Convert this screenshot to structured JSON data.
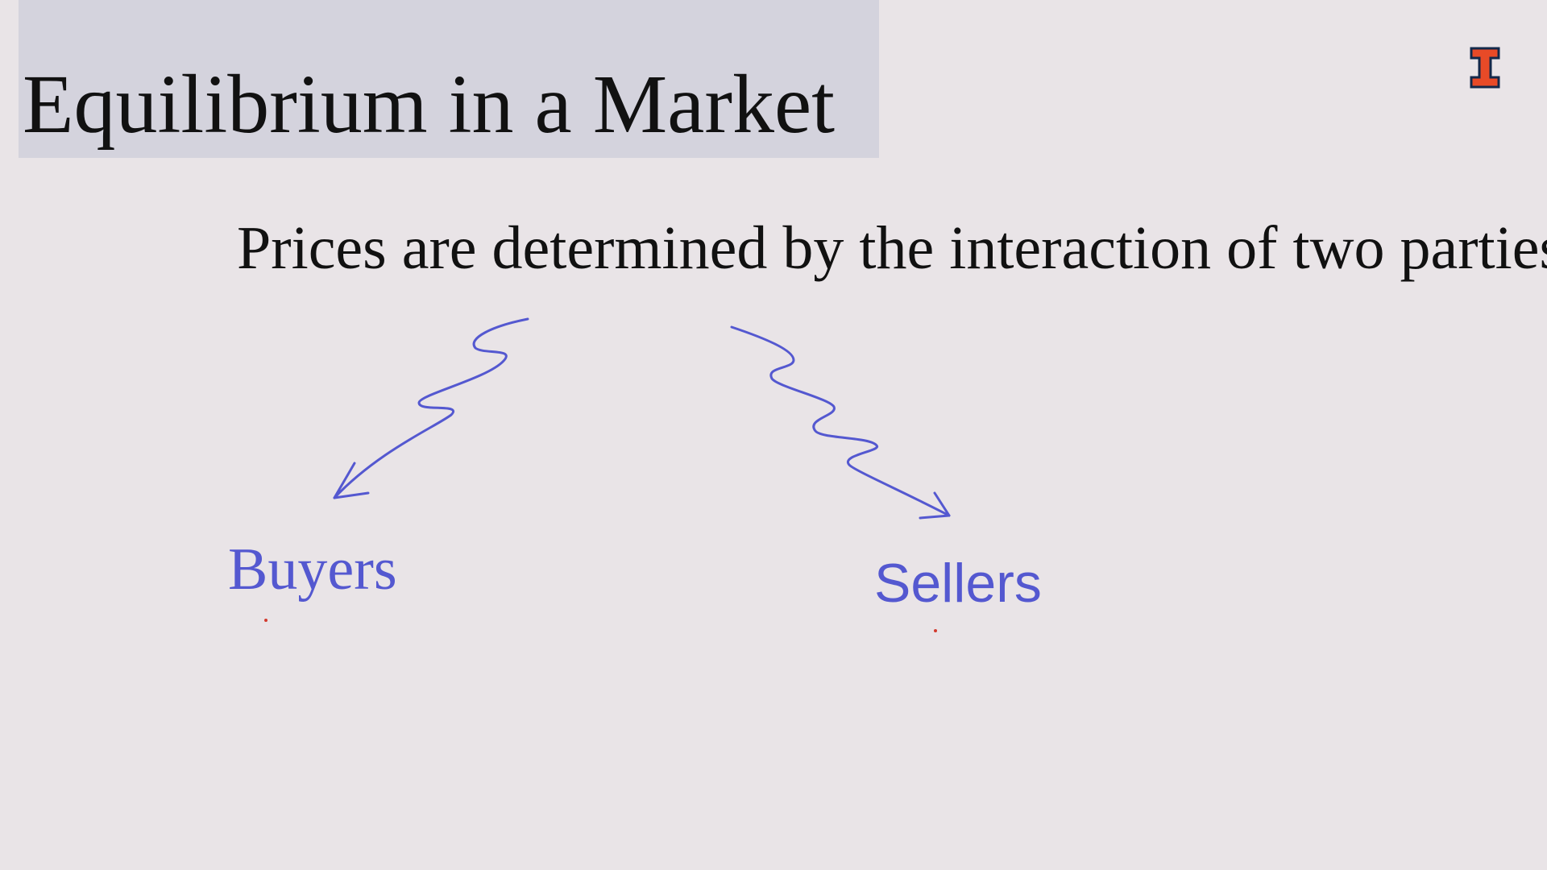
{
  "slide": {
    "title": "Equilibrium in a Market",
    "subtitle": "Prices are determined by the interaction of two parties",
    "title_band_color": "#d4d3dd",
    "background_color": "#e9e4e7"
  },
  "annotations": {
    "ink_color": "#5458d0",
    "marker_dot_color": "#d23a2e",
    "left_label": "Buyers",
    "right_label": "Sellers",
    "left_arrow_icon": "squiggly-arrow-down-left",
    "right_arrow_icon": "squiggly-arrow-down-right"
  },
  "logo": {
    "icon": "block-i-logo",
    "fill_color": "#e84a27",
    "outline_color": "#13294b"
  }
}
